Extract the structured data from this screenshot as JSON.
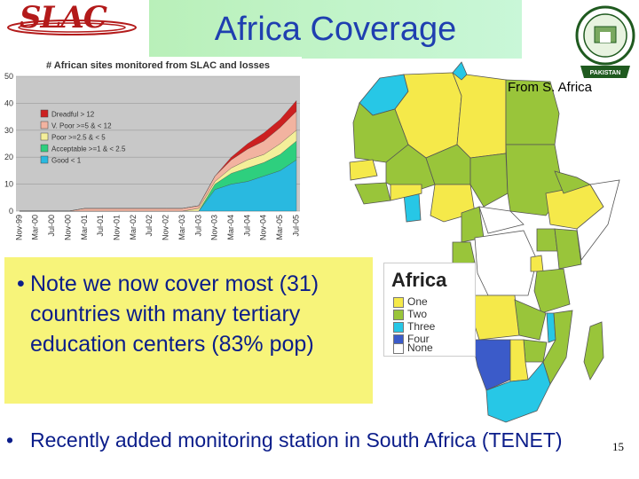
{
  "header": {
    "logo_text": "SLAC",
    "title": "Africa Coverage",
    "seal_text": "PAKISTAN"
  },
  "chart_data": {
    "type": "area",
    "title": "# African sites monitored from SLAC and losses",
    "ylim": [
      0,
      50
    ],
    "yticks": [
      "0",
      "10",
      "20",
      "30",
      "40",
      "50"
    ],
    "categories": [
      "Nov-99",
      "Mar-00",
      "Jul-00",
      "Nov-00",
      "Mar-01",
      "Jul-01",
      "Nov-01",
      "Mar-02",
      "Jul-02",
      "Nov-02",
      "Mar-03",
      "Jul-03",
      "Nov-03",
      "Mar-04",
      "Jul-04",
      "Nov-04",
      "Mar-05",
      "Jul-05"
    ],
    "series": [
      {
        "name": "Dreadful > 12",
        "color": "#cc2020",
        "values": [
          0,
          0,
          0,
          0,
          0,
          0,
          0,
          0,
          0,
          0,
          0,
          0,
          0,
          1,
          2,
          3,
          3,
          4
        ]
      },
      {
        "name": "V. Poor >=5 & < 12",
        "color": "#f2b3a0",
        "values": [
          0,
          0,
          0,
          0,
          1,
          1,
          1,
          1,
          1,
          1,
          1,
          1,
          2,
          3,
          4,
          5,
          6,
          7
        ]
      },
      {
        "name": "Poor >=2.5 & < 5",
        "color": "#f4ef9a",
        "values": [
          0,
          0,
          0,
          0,
          0,
          0,
          0,
          0,
          0,
          0,
          0,
          1,
          1,
          2,
          3,
          3,
          4,
          4
        ]
      },
      {
        "name": "Acceptable >=1 & < 2.5",
        "color": "#2ecf7e",
        "values": [
          0,
          0,
          0,
          0,
          0,
          0,
          0,
          0,
          0,
          0,
          0,
          0,
          2,
          4,
          5,
          5,
          6,
          7
        ]
      },
      {
        "name": "Good < 1",
        "color": "#29b9e0",
        "values": [
          0,
          0,
          0,
          0,
          0,
          0,
          0,
          0,
          0,
          0,
          0,
          0,
          8,
          10,
          11,
          13,
          15,
          19
        ]
      }
    ],
    "grid": true,
    "legend": "left"
  },
  "map": {
    "caption": "From S. Africa",
    "legend_title": "Africa",
    "legend": [
      {
        "label": "One",
        "color": "#f5e94a"
      },
      {
        "label": "Two",
        "color": "#99c53a"
      },
      {
        "label": "Three",
        "color": "#27c7e6"
      },
      {
        "label": "Four",
        "color": "#3b5bc9"
      },
      {
        "label": "None",
        "color": "#ffffff"
      }
    ],
    "regions": [
      {
        "name": "Algeria",
        "color": "#f5e94a"
      },
      {
        "name": "Morocco",
        "color": "#27c7e6"
      },
      {
        "name": "Libya",
        "color": "#f5e94a"
      },
      {
        "name": "Egypt",
        "color": "#99c53a"
      },
      {
        "name": "Mali",
        "color": "#99c53a"
      },
      {
        "name": "Mauritania",
        "color": "#99c53a"
      },
      {
        "name": "Niger",
        "color": "#99c53a"
      },
      {
        "name": "Chad",
        "color": "#99c53a"
      },
      {
        "name": "Sudan",
        "color": "#99c53a"
      },
      {
        "name": "Ethiopia",
        "color": "#f5e94a"
      },
      {
        "name": "Nigeria",
        "color": "#f5e94a"
      },
      {
        "name": "Kenya",
        "color": "#99c53a"
      },
      {
        "name": "Tanzania",
        "color": "#99c53a"
      },
      {
        "name": "Angola",
        "color": "#f5e94a"
      },
      {
        "name": "Zambia",
        "color": "#99c53a"
      },
      {
        "name": "Namibia",
        "color": "#3b5bc9"
      },
      {
        "name": "Botswana",
        "color": "#f5e94a"
      },
      {
        "name": "South Africa",
        "color": "#27c7e6"
      },
      {
        "name": "Mozambique",
        "color": "#99c53a"
      },
      {
        "name": "Madagascar",
        "color": "#99c53a"
      }
    ]
  },
  "bullets": [
    {
      "symbol": "•",
      "text": "Note we now cover most (31) countries with many tertiary education centers (83% pop)"
    },
    {
      "symbol": "•",
      "text": "Recently added monitoring station in South Africa (TENET)"
    }
  ],
  "page_number": "15"
}
